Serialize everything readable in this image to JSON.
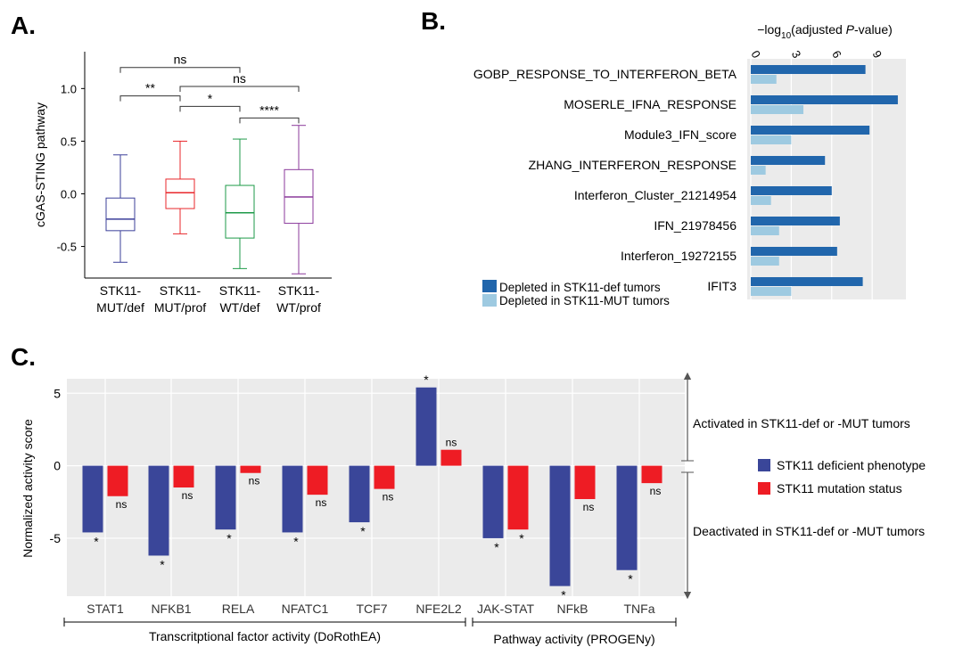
{
  "panels": {
    "A": "A.",
    "B": "B.",
    "C": "C."
  },
  "colors": {
    "boxes": [
      "#3B3F9A",
      "#E8272B",
      "#1E9A48",
      "#8B3A9B"
    ],
    "dark_blue": "#2166AC",
    "light_blue": "#9ECAE1",
    "navy": "#3A4699",
    "red": "#EE1C24",
    "panel_bg": "#EBEBEB"
  },
  "chart_data": [
    {
      "type": "box",
      "ylabel": "cGAS-STING pathway",
      "ylim": [
        -0.8,
        1.35
      ],
      "yticks": [
        -0.5,
        0.0,
        0.5,
        1.0
      ],
      "ytick_labels": [
        "-0.5",
        "0.0",
        "0.5",
        "1.0"
      ],
      "groups": [
        {
          "line1": "STK11-",
          "line2": "MUT/def",
          "min": -0.65,
          "q1": -0.35,
          "median": -0.24,
          "q3": -0.04,
          "max": 0.37
        },
        {
          "line1": "STK11-",
          "line2": "MUT/prof",
          "min": -0.38,
          "q1": -0.14,
          "median": 0.01,
          "q3": 0.14,
          "max": 0.5
        },
        {
          "line1": "STK11-",
          "line2": "WT/def",
          "min": -0.71,
          "q1": -0.42,
          "median": -0.18,
          "q3": 0.08,
          "max": 0.52
        },
        {
          "line1": "STK11-",
          "line2": "WT/prof",
          "min": -0.76,
          "q1": -0.28,
          "median": -0.03,
          "q3": 0.23,
          "max": 0.65
        }
      ],
      "significance": [
        {
          "from": 0,
          "to": 1,
          "y": 0.93,
          "label": "**"
        },
        {
          "from": 1,
          "to": 2,
          "y": 0.83,
          "label": "*"
        },
        {
          "from": 2,
          "to": 3,
          "y": 0.72,
          "label": "****"
        },
        {
          "from": 0,
          "to": 2,
          "y": 1.2,
          "label": "ns"
        },
        {
          "from": 1,
          "to": 3,
          "y": 1.02,
          "label": "ns"
        }
      ]
    },
    {
      "type": "bar",
      "orientation": "horizontal",
      "xlabel_prefix": "−log",
      "xlabel_sub": "10",
      "xlabel_mid": "(adjusted ",
      "xlabel_ital": "P",
      "xlabel_suffix": "-value)",
      "xlim": [
        0,
        11.5
      ],
      "xticks": [
        0,
        3,
        6,
        9
      ],
      "xtick_labels": [
        "0",
        "3",
        "6",
        "9"
      ],
      "categories": [
        "GOBP_RESPONSE_TO_INTERFERON_BETA",
        "MOSERLE_IFNA_RESPONSE",
        "Module3_IFN_score",
        "ZHANG_INTERFERON_RESPONSE",
        "Interferon_Cluster_21214954",
        "IFN_21978456",
        "Interferon_19272155",
        "IFIT3"
      ],
      "series": [
        {
          "name": "Depleted in STK11-def tumors",
          "values": [
            8.5,
            10.9,
            8.8,
            5.5,
            6.0,
            6.6,
            6.4,
            8.3
          ]
        },
        {
          "name": "Depleted in STK11-MUT tumors",
          "values": [
            1.9,
            3.9,
            3.0,
            1.1,
            1.5,
            2.1,
            2.1,
            3.0
          ]
        }
      ]
    },
    {
      "type": "bar",
      "ylabel": "Normalized activity score",
      "ylim": [
        -9,
        6
      ],
      "yticks": [
        -5,
        0,
        5
      ],
      "ytick_labels": [
        "-5",
        "0",
        "5"
      ],
      "categories": [
        "STAT1",
        "NFKB1",
        "RELA",
        "NFATC1",
        "TCF7",
        "NFE2L2",
        "JAK-STAT",
        "NFkB",
        "TNFa"
      ],
      "series": [
        {
          "name": "STK11 deficient phenotype",
          "values": [
            -4.6,
            -6.2,
            -4.4,
            -4.6,
            -3.9,
            5.4,
            -5.0,
            -8.3,
            -7.2
          ],
          "labels": [
            "*",
            "*",
            "*",
            "*",
            "*",
            "*",
            "*",
            "*",
            "*"
          ]
        },
        {
          "name": "STK11 mutation status",
          "values": [
            -2.1,
            -1.5,
            -0.5,
            -2.0,
            -1.6,
            1.1,
            -4.4,
            -2.3,
            -1.2
          ],
          "labels": [
            "ns",
            "ns",
            "ns",
            "ns",
            "ns",
            "ns",
            "*",
            "ns",
            "ns"
          ]
        }
      ],
      "annotations": {
        "activated": "Activated in STK11-def or -MUT tumors",
        "deactivated": "Deactivated in STK11-def or -MUT tumors"
      },
      "brackets": {
        "tf": "Transcritptional factor activity (DoRothEA)",
        "pathway": "Pathway activity (PROGENy)"
      }
    }
  ]
}
